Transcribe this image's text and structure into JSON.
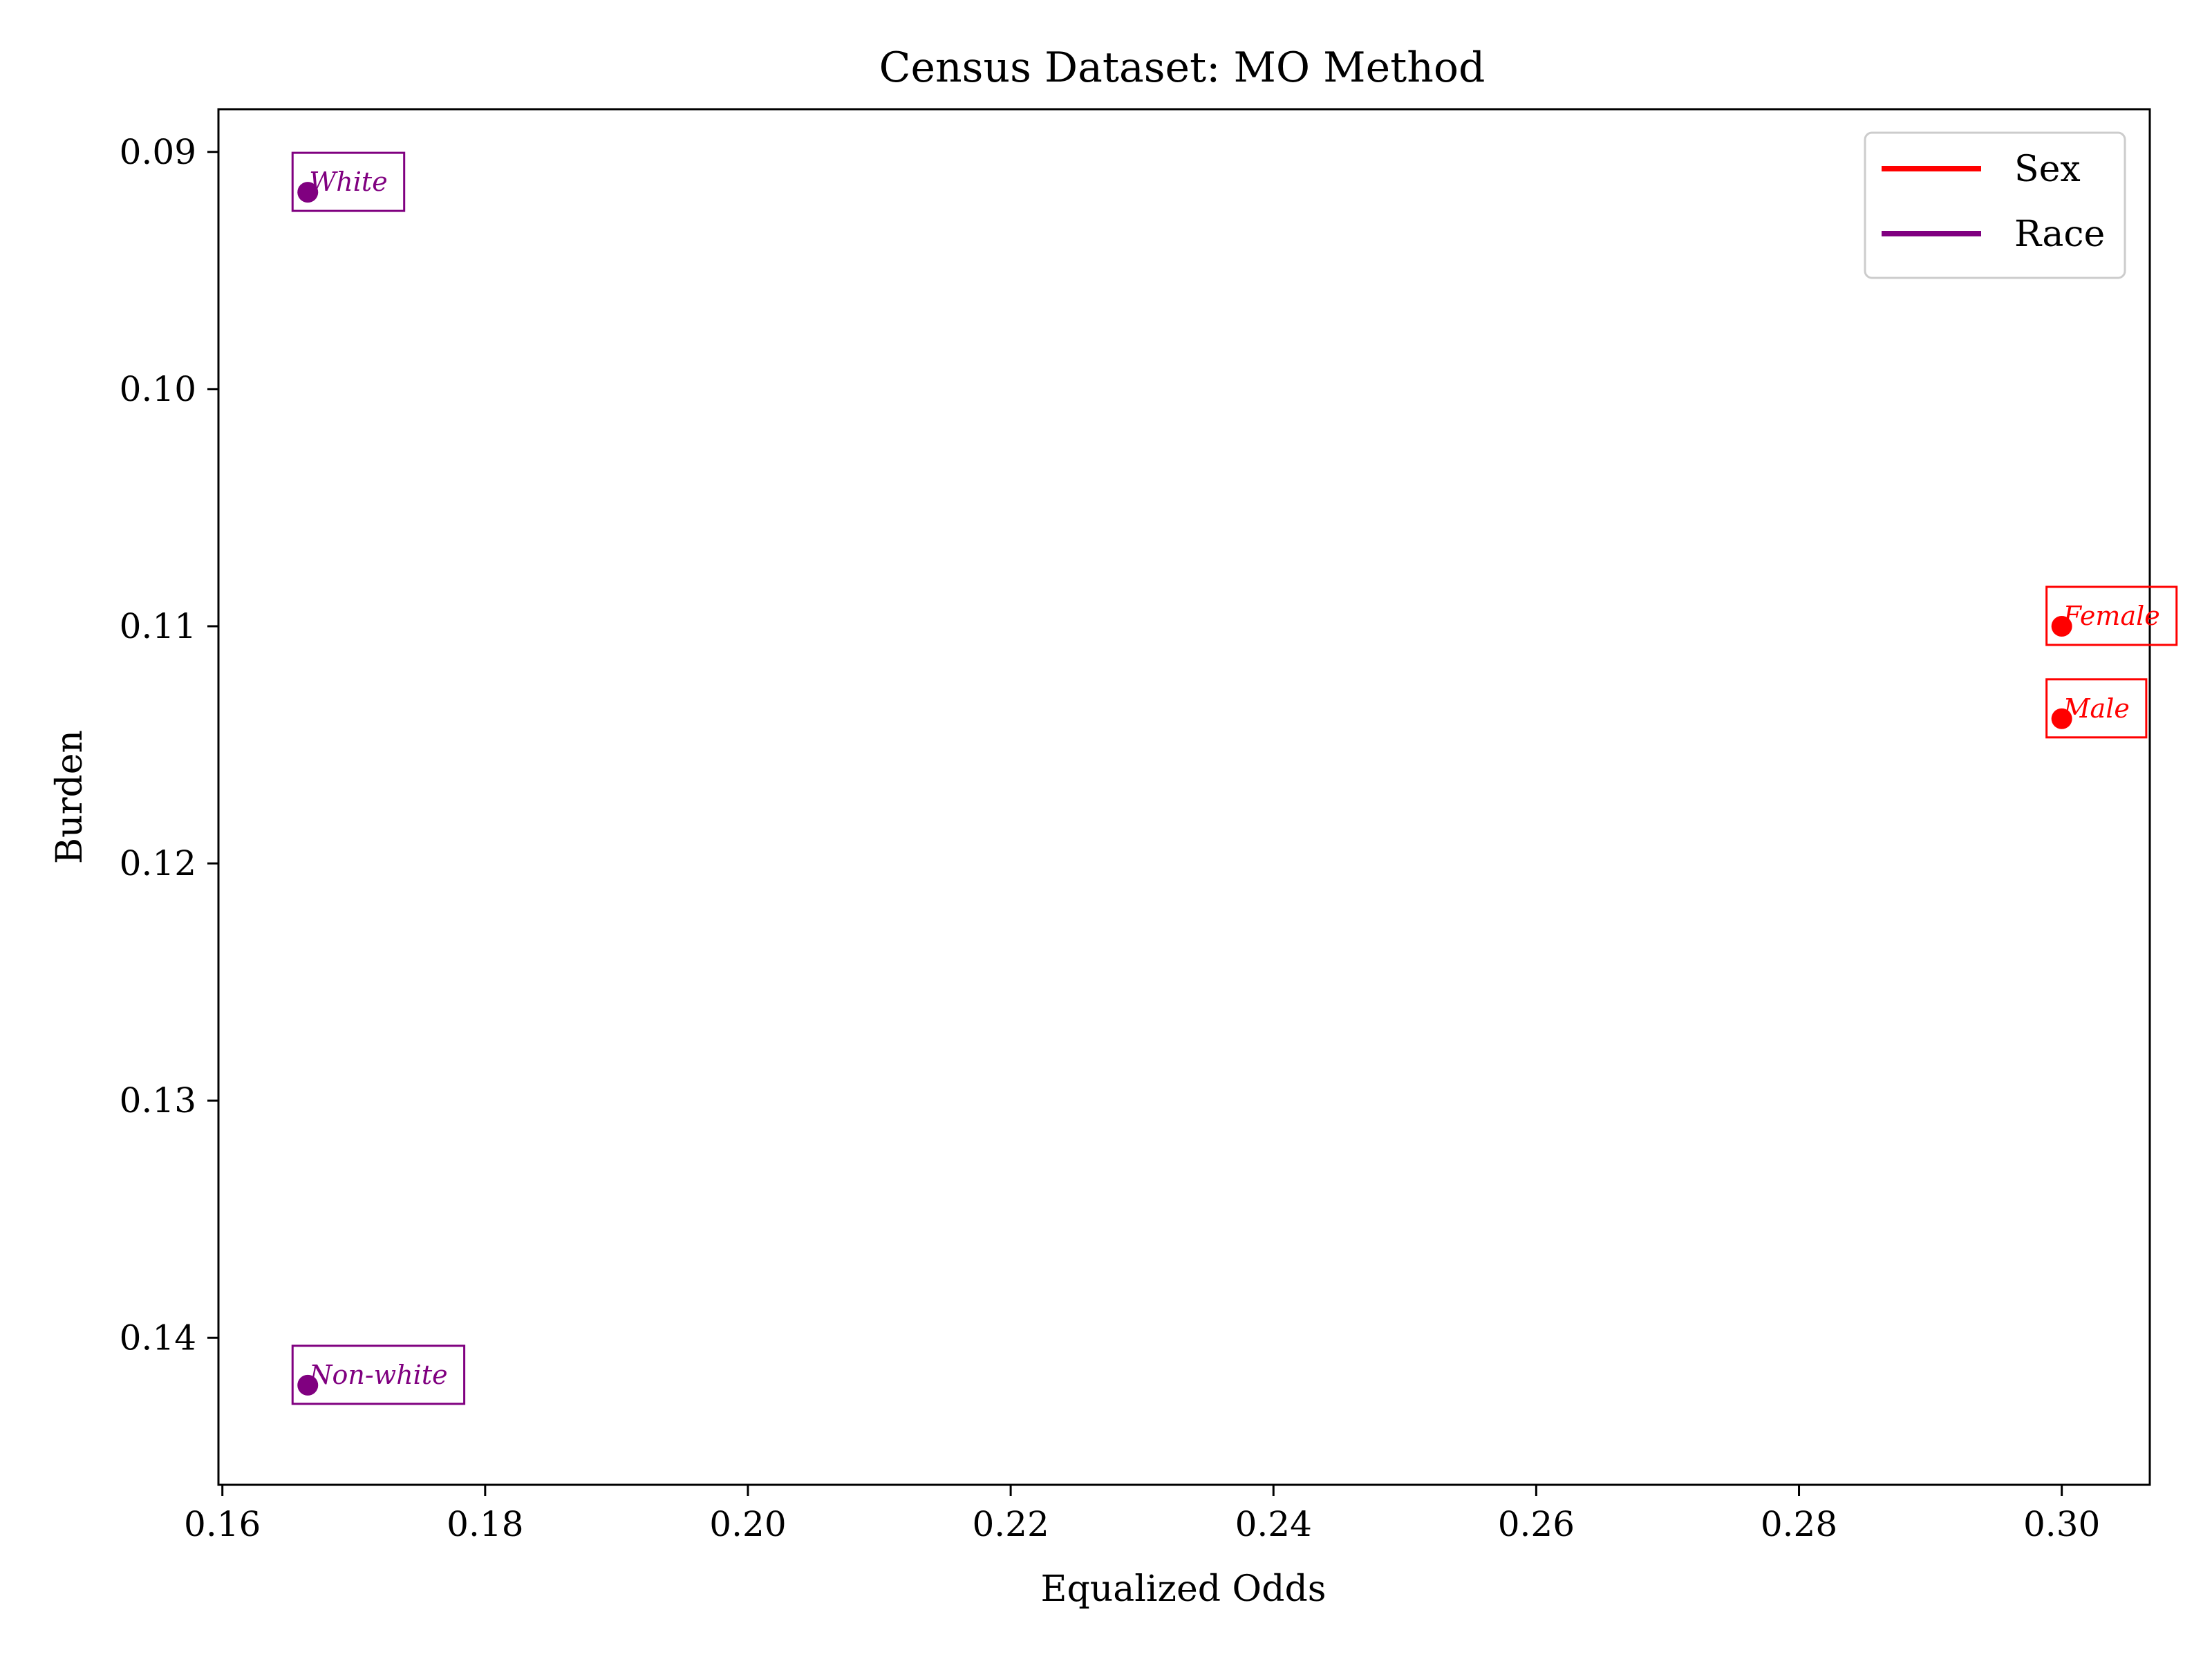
{
  "chart_data": {
    "type": "scatter",
    "title": "Census Dataset: MO Method",
    "xlabel": "Equalized Odds",
    "ylabel": "Burden",
    "xlim": [
      0.1597,
      0.3067
    ],
    "ylim": [
      0.1462,
      0.0882
    ],
    "y_inverted": true,
    "grid": false,
    "legend_placement": "top-right",
    "xticks": [
      0.16,
      0.18,
      0.2,
      0.22,
      0.24,
      0.26,
      0.28,
      0.3
    ],
    "xtick_labels": [
      "0.16",
      "0.18",
      "0.20",
      "0.22",
      "0.24",
      "0.26",
      "0.28",
      "0.30"
    ],
    "yticks": [
      0.09,
      0.1,
      0.11,
      0.12,
      0.13,
      0.14
    ],
    "ytick_labels": [
      "0.09",
      "0.10",
      "0.11",
      "0.12",
      "0.13",
      "0.14"
    ],
    "series": [
      {
        "name": "Sex",
        "color": "#ff0000",
        "points": [
          {
            "label": "Female",
            "x": 0.3,
            "y": 0.11
          },
          {
            "label": "Male",
            "x": 0.3,
            "y": 0.1139
          }
        ]
      },
      {
        "name": "Race",
        "color": "#800080",
        "points": [
          {
            "label": "White",
            "x": 0.1665,
            "y": 0.0917
          },
          {
            "label": "Non-white",
            "x": 0.1665,
            "y": 0.142
          }
        ]
      }
    ]
  }
}
